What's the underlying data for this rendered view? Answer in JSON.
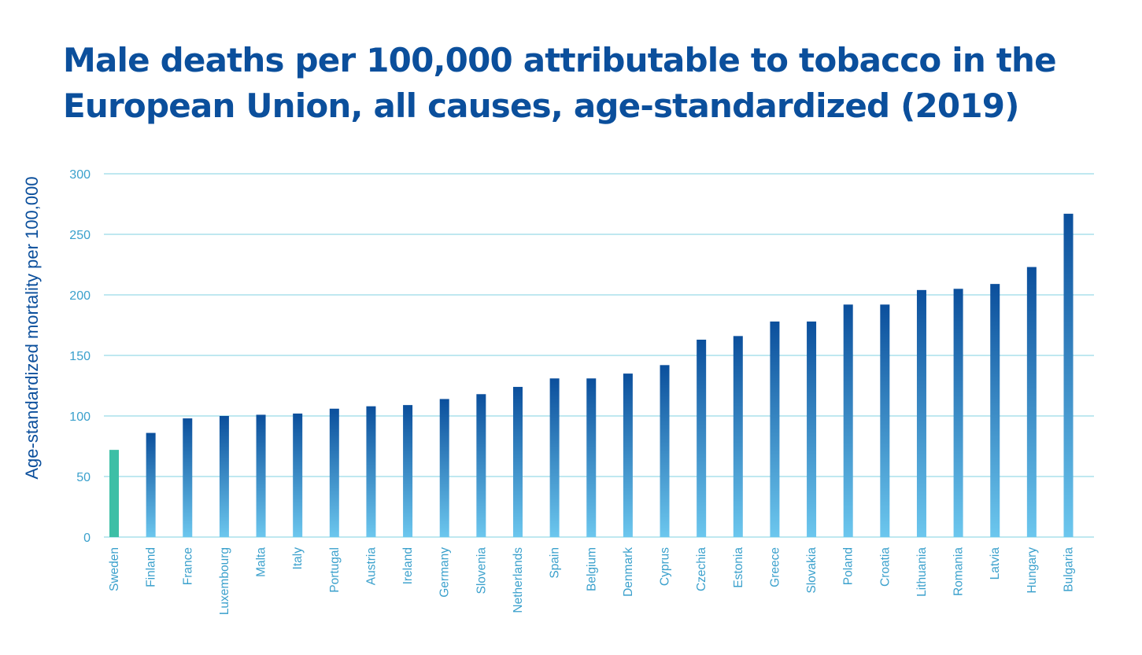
{
  "chart_data": {
    "type": "bar",
    "title": "Male deaths per 100,000 attributable to tobacco in the European Union, all causes, age-standardized (2019)",
    "xlabel": "",
    "ylabel": "Age-standardized mortality per 100,000",
    "ylim": [
      0,
      300
    ],
    "yticks": [
      0,
      50,
      100,
      150,
      200,
      250,
      300
    ],
    "grid": true,
    "categories": [
      "Sweden",
      "Finland",
      "France",
      "Luxembourg",
      "Malta",
      "Italy",
      "Portugal",
      "Austria",
      "Ireland",
      "Germany",
      "Slovenia",
      "Netherlands",
      "Spain",
      "Belgium",
      "Denmark",
      "Cyprus",
      "Czechia",
      "Estonia",
      "Greece",
      "Slovakia",
      "Poland",
      "Croatia",
      "Lithuania",
      "Romania",
      "Latvia",
      "Hungary",
      "Bulgaria"
    ],
    "values": [
      72,
      86,
      98,
      100,
      101,
      102,
      106,
      108,
      109,
      114,
      118,
      124,
      131,
      131,
      135,
      142,
      163,
      166,
      178,
      178,
      192,
      192,
      204,
      205,
      209,
      223,
      267
    ],
    "highlight_category": "Sweden",
    "colors": {
      "highlight": "#3dbfa6",
      "bar_top": "#0b4f9c",
      "bar_bottom": "#6cc7ee",
      "grid": "#7fd0e2",
      "tick_text": "#3aa0cc",
      "title": "#0b4f9c"
    }
  }
}
